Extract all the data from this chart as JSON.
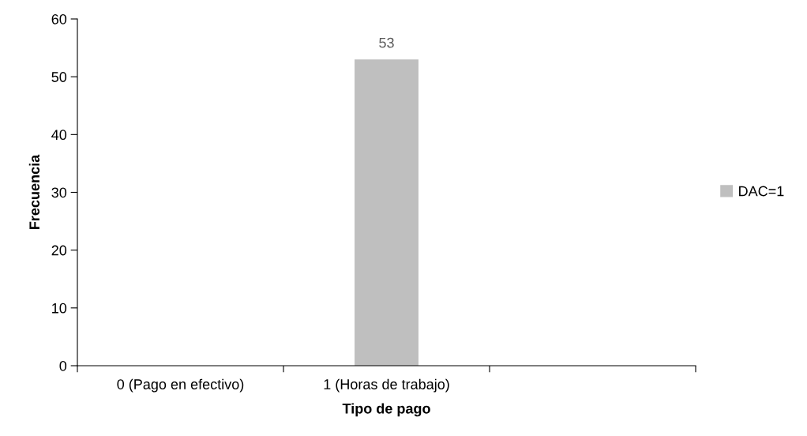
{
  "chart_data": {
    "type": "bar",
    "xlabel": "Tipo de pago",
    "ylabel": "Frecuencia",
    "categories": [
      "0 (Pago en efectivo)",
      "1 (Horas de trabajo)",
      null
    ],
    "series": [
      {
        "name": "DAC=1",
        "color": "#bfbfbf",
        "values": [
          null,
          53,
          null
        ]
      }
    ],
    "ylim": [
      0,
      60
    ],
    "yticks": [
      0,
      10,
      20,
      30,
      40,
      50,
      60
    ],
    "data_labels": true,
    "legend": "right",
    "grid": false
  }
}
